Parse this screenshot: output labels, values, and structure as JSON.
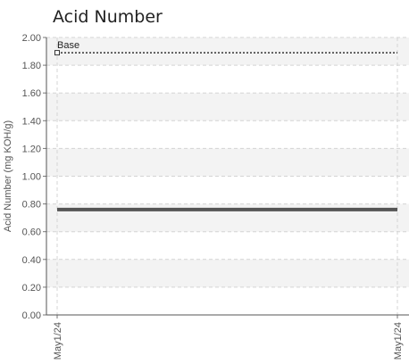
{
  "chart_data": {
    "type": "line",
    "title": "Acid Number",
    "xlabel": "",
    "ylabel": "Acid Number (mg KOH/g)",
    "x": [
      "May1/24",
      "May1/24"
    ],
    "ylim": [
      0,
      2.0
    ],
    "yticks": [
      "0.00",
      "0.20",
      "0.40",
      "0.60",
      "0.80",
      "1.00",
      "1.20",
      "1.40",
      "1.60",
      "1.80",
      "2.00"
    ],
    "grid": true,
    "series": [
      {
        "name": "Base",
        "style": "dotted",
        "color": "#333333",
        "values": [
          1.89,
          1.89
        ]
      },
      {
        "name": "",
        "style": "solid",
        "color": "#555555",
        "values": [
          0.76,
          0.76
        ]
      }
    ]
  }
}
